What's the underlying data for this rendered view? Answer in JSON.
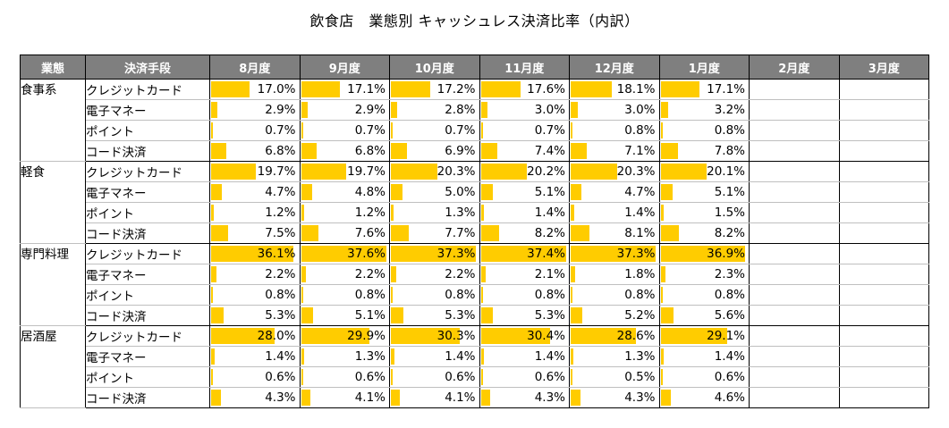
{
  "title": "飲食店　業態別 キャッシュレス決済比率（内訳）",
  "chart_data": {
    "type": "table",
    "title": "飲食店　業態別 キャッシュレス決済比率（内訳）",
    "headers": {
      "group": "業態",
      "method": "決済手段",
      "months": [
        "8月度",
        "9月度",
        "10月度",
        "11月度",
        "12月度",
        "1月度",
        "2月度",
        "3月度"
      ]
    },
    "bar_max": 38.0,
    "bar_color": "#ffcc00",
    "header_color": "#7f7f7f",
    "groups": [
      {
        "name": "食事系",
        "rows": [
          {
            "method": "クレジットカード",
            "values": [
              "17.0%",
              "17.1%",
              "17.2%",
              "17.6%",
              "18.1%",
              "17.1%",
              "",
              ""
            ]
          },
          {
            "method": "電子マネー",
            "values": [
              "2.9%",
              "2.9%",
              "2.8%",
              "3.0%",
              "3.0%",
              "3.2%",
              "",
              ""
            ]
          },
          {
            "method": "ポイント",
            "values": [
              "0.7%",
              "0.7%",
              "0.7%",
              "0.7%",
              "0.8%",
              "0.8%",
              "",
              ""
            ]
          },
          {
            "method": "コード決済",
            "values": [
              "6.8%",
              "6.8%",
              "6.9%",
              "7.4%",
              "7.1%",
              "7.8%",
              "",
              ""
            ]
          }
        ]
      },
      {
        "name": "軽食",
        "rows": [
          {
            "method": "クレジットカード",
            "values": [
              "19.7%",
              "19.7%",
              "20.3%",
              "20.2%",
              "20.3%",
              "20.1%",
              "",
              ""
            ]
          },
          {
            "method": "電子マネー",
            "values": [
              "4.7%",
              "4.8%",
              "5.0%",
              "5.1%",
              "4.7%",
              "5.1%",
              "",
              ""
            ]
          },
          {
            "method": "ポイント",
            "values": [
              "1.2%",
              "1.2%",
              "1.3%",
              "1.4%",
              "1.4%",
              "1.5%",
              "",
              ""
            ]
          },
          {
            "method": "コード決済",
            "values": [
              "7.5%",
              "7.6%",
              "7.7%",
              "8.2%",
              "8.1%",
              "8.2%",
              "",
              ""
            ]
          }
        ]
      },
      {
        "name": "専門料理",
        "rows": [
          {
            "method": "クレジットカード",
            "values": [
              "36.1%",
              "37.6%",
              "37.3%",
              "37.4%",
              "37.3%",
              "36.9%",
              "",
              ""
            ]
          },
          {
            "method": "電子マネー",
            "values": [
              "2.2%",
              "2.2%",
              "2.2%",
              "2.1%",
              "1.8%",
              "2.3%",
              "",
              ""
            ]
          },
          {
            "method": "ポイント",
            "values": [
              "0.8%",
              "0.8%",
              "0.8%",
              "0.8%",
              "0.8%",
              "0.8%",
              "",
              ""
            ]
          },
          {
            "method": "コード決済",
            "values": [
              "5.3%",
              "5.1%",
              "5.3%",
              "5.3%",
              "5.2%",
              "5.6%",
              "",
              ""
            ]
          }
        ]
      },
      {
        "name": "居酒屋",
        "rows": [
          {
            "method": "クレジットカード",
            "values": [
              "28.0%",
              "29.9%",
              "30.3%",
              "30.4%",
              "28.6%",
              "29.1%",
              "",
              ""
            ]
          },
          {
            "method": "電子マネー",
            "values": [
              "1.4%",
              "1.3%",
              "1.4%",
              "1.4%",
              "1.3%",
              "1.4%",
              "",
              ""
            ]
          },
          {
            "method": "ポイント",
            "values": [
              "0.6%",
              "0.6%",
              "0.6%",
              "0.6%",
              "0.5%",
              "0.6%",
              "",
              ""
            ]
          },
          {
            "method": "コード決済",
            "values": [
              "4.3%",
              "4.1%",
              "4.1%",
              "4.3%",
              "4.3%",
              "4.6%",
              "",
              ""
            ]
          }
        ]
      }
    ]
  }
}
